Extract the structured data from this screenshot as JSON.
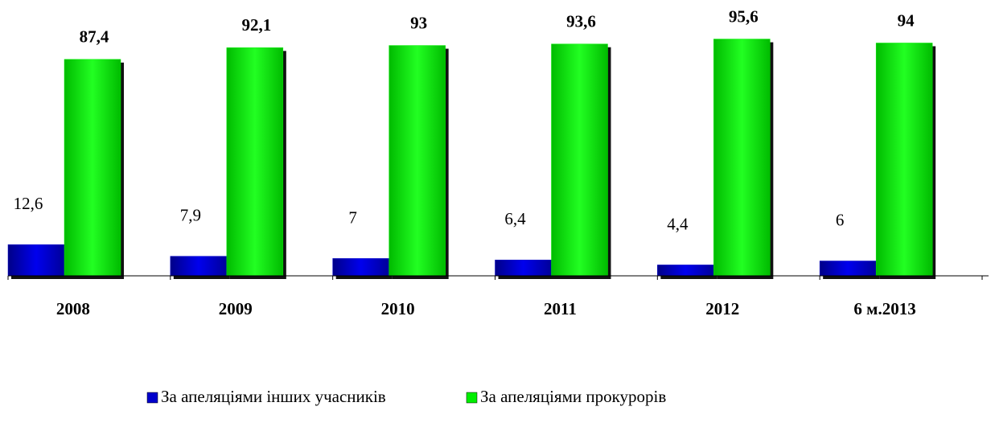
{
  "chart_data": {
    "type": "bar",
    "categories": [
      "2008",
      "2009",
      "2010",
      "2011",
      "2012",
      "6 м.2013"
    ],
    "series": [
      {
        "name": "За апеляціями інших учасників",
        "color": "#0000cc",
        "values": [
          12.6,
          7.9,
          7,
          6.4,
          4.4,
          6
        ],
        "value_labels": [
          "12,6",
          "7,9",
          "7",
          "6,4",
          "4,4",
          "6"
        ]
      },
      {
        "name": "За апеляціями прокурорів",
        "color": "#00ee00",
        "values": [
          87.4,
          92.1,
          93,
          93.6,
          95.6,
          94
        ],
        "value_labels": [
          "87,4",
          "92,1",
          "93",
          "93,6",
          "95,6",
          "94"
        ]
      }
    ],
    "ylim": [
      0,
      100
    ]
  }
}
